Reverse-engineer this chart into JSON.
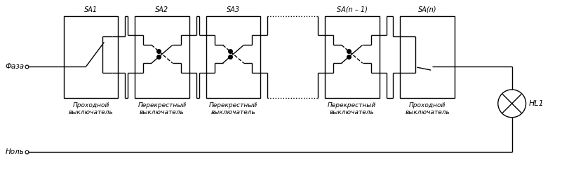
{
  "bg_color": "#ffffff",
  "line_color": "#000000",
  "fig_width": 8.11,
  "fig_height": 2.5,
  "dpi": 100,
  "faza_label": "Фаза",
  "nol_label": "Ноль",
  "hl1_label": "HL1",
  "switch_labels": [
    "SA1",
    "SA2",
    "SA3",
    "SA(n – 1)",
    "SA(n)"
  ],
  "switch_types": [
    "Проходной\nвыключатель",
    "Перекрестный\nвыключатель",
    "Перекрестный\nвыключатель",
    "Перекрестный\nвыключатель",
    "Проходной\nвыключатель"
  ]
}
